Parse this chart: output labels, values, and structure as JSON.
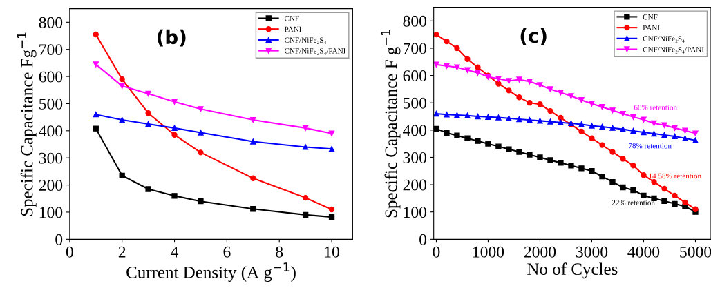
{
  "chart_data": [
    {
      "type": "line",
      "title": "(b)",
      "xlabel": "Current Density (A g$^{−1}$)",
      "ylabel": "Specific Capacitance Fg$^{−1}$",
      "x": [
        1,
        2,
        3,
        4,
        5,
        7,
        9,
        10
      ],
      "series": [
        {
          "name": "CNF",
          "color": "#000000",
          "marker": "square",
          "values": [
            408,
            235,
            185,
            160,
            140,
            112,
            90,
            82
          ]
        },
        {
          "name": "PANI",
          "color": "#ff0000",
          "marker": "circle",
          "values": [
            755,
            590,
            465,
            385,
            320,
            225,
            153,
            110
          ]
        },
        {
          "name": "CNF/NiFe₂S₄",
          "color": "#0000ff",
          "marker": "triangle",
          "values": [
            460,
            440,
            425,
            410,
            393,
            360,
            340,
            333
          ]
        },
        {
          "name": "CNF/NiFe₂S₄/PANI",
          "color": "#ff00ff",
          "marker": "triangle_down",
          "values": [
            645,
            565,
            537,
            507,
            480,
            440,
            410,
            390
          ]
        }
      ],
      "xlim": [
        0,
        10.8
      ],
      "ylim": [
        0,
        850
      ],
      "xticks": [
        0,
        2,
        4,
        6,
        8,
        10
      ],
      "yticks": [
        0,
        100,
        200,
        300,
        400,
        500,
        600,
        700,
        800
      ],
      "legend": "top right",
      "grid": false,
      "line_style": "solid"
    },
    {
      "type": "line",
      "title": "(c)",
      "xlabel": "No of Cycles",
      "ylabel": "Specific Capacitance F g$^{−1}$",
      "x": [
        0,
        200,
        400,
        600,
        800,
        1000,
        1200,
        1400,
        1600,
        1800,
        2000,
        2200,
        2400,
        2600,
        2800,
        3000,
        3200,
        3400,
        3600,
        3800,
        4000,
        4200,
        4400,
        4600,
        4800,
        5000
      ],
      "series": [
        {
          "name": "CNF",
          "color": "#000000",
          "marker": "square",
          "values": [
            405,
            390,
            380,
            370,
            360,
            350,
            340,
            330,
            320,
            310,
            300,
            290,
            280,
            270,
            260,
            250,
            230,
            210,
            190,
            180,
            160,
            150,
            140,
            130,
            120,
            100
          ]
        },
        {
          "name": "PANI",
          "color": "#ff0000",
          "marker": "circle",
          "values": [
            750,
            725,
            700,
            660,
            630,
            600,
            570,
            545,
            520,
            500,
            495,
            470,
            445,
            420,
            395,
            370,
            345,
            320,
            295,
            270,
            235,
            210,
            185,
            160,
            135,
            110
          ]
        },
        {
          "name": "CNF/NiFe₂S₄",
          "color": "#0000ff",
          "marker": "triangle",
          "values": [
            460,
            457,
            455,
            453,
            450,
            448,
            446,
            443,
            440,
            437,
            434,
            431,
            428,
            425,
            421,
            416,
            412,
            408,
            403,
            397,
            392,
            387,
            382,
            377,
            370,
            362
          ]
        },
        {
          "name": "CNF/NiFe₂S₄/PANI",
          "color": "#ff00ff",
          "marker": "triangle_down",
          "values": [
            640,
            635,
            630,
            620,
            610,
            595,
            588,
            580,
            585,
            578,
            565,
            550,
            538,
            525,
            510,
            497,
            485,
            472,
            460,
            448,
            438,
            425,
            418,
            408,
            398,
            388
          ]
        }
      ],
      "annotations": [
        "60% retention",
        "78% retention",
        "14.58% retention",
        "22% retention"
      ],
      "xlim": [
        -50,
        5300
      ],
      "ylim": [
        0,
        850
      ],
      "xticks": [
        0,
        1000,
        2000,
        3000,
        4000,
        5000
      ],
      "yticks": [
        0,
        100,
        200,
        300,
        400,
        500,
        600,
        700,
        800
      ],
      "legend": "top right",
      "grid": false,
      "line_style": "solid"
    }
  ]
}
